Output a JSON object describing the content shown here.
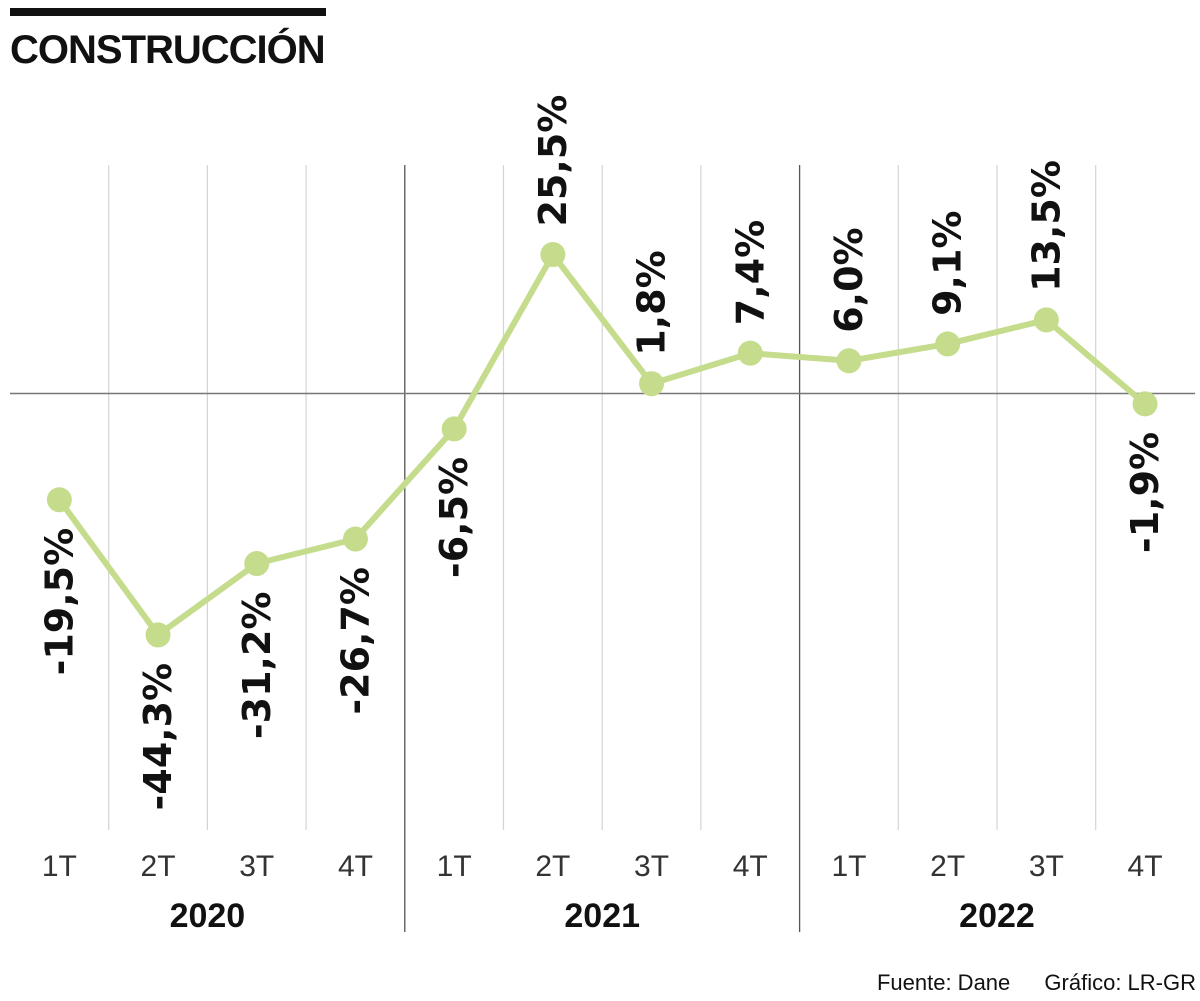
{
  "title": "CONSTRUCCIÓN",
  "footer": {
    "source": "Fuente: Dane",
    "credit": "Gráfico: LR-GR"
  },
  "colors": {
    "line": "#c5dc8c",
    "grid": "#d4d4d4",
    "year_divider": "#555555",
    "zero_line": "#777777",
    "text": "#111111"
  },
  "chart_data": {
    "type": "line",
    "title": "CONSTRUCCIÓN",
    "xlabel": "",
    "ylabel": "",
    "ylim": [
      -44.3,
      25.5
    ],
    "grid": true,
    "categories": [
      "1T",
      "2T",
      "3T",
      "4T",
      "1T",
      "2T",
      "3T",
      "4T",
      "1T",
      "2T",
      "3T",
      "4T"
    ],
    "years": [
      "2020",
      "2021",
      "2022"
    ],
    "series": [
      {
        "name": "Construcción",
        "values": [
          -19.5,
          -44.3,
          -31.2,
          -26.7,
          -6.5,
          25.5,
          1.8,
          7.4,
          6.0,
          9.1,
          13.5,
          -1.9
        ],
        "labels": [
          "-19,5%",
          "-44,3%",
          "-31,2%",
          "-26,7%",
          "-6,5%",
          "25,5%",
          "1,8%",
          "7,4%",
          "6,0%",
          "9,1%",
          "13,5%",
          "-1,9%"
        ]
      }
    ]
  }
}
